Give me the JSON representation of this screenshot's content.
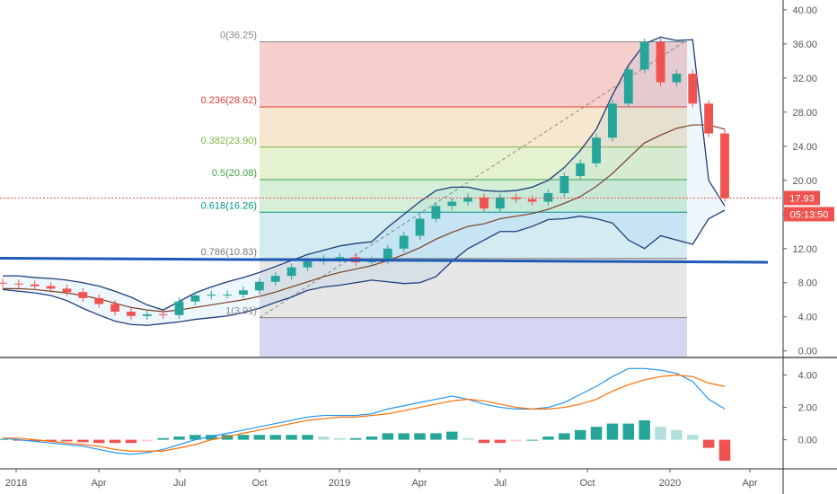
{
  "chart_data": [
    {
      "type": "candlestick",
      "panel": "price",
      "title": "",
      "ylim": [
        -0.5,
        41
      ],
      "y_ticks": [
        "40.00",
        "36.00",
        "32.00",
        "28.00",
        "24.00",
        "20.00",
        "16.00",
        "12.00",
        "8.00",
        "4.00",
        "0.00"
      ],
      "x_labels": [
        "2018",
        "Apr",
        "Jul",
        "Oct",
        "2019",
        "Apr",
        "Jul",
        "Oct",
        "2020",
        "Apr"
      ],
      "last_price": "17.93",
      "countdown": "05:13:50",
      "fibonacci": [
        {
          "label": "0(36.25)",
          "value": 36.25,
          "color": "#888888"
        },
        {
          "label": "0.236(28.62)",
          "value": 28.62,
          "color": "#e53935"
        },
        {
          "label": "0.382(23.90)",
          "value": 23.9,
          "color": "#81b441"
        },
        {
          "label": "0.5(20.08)",
          "value": 20.08,
          "color": "#43a047"
        },
        {
          "label": "0.618(16.26)",
          "value": 16.26,
          "color": "#009688"
        },
        {
          "label": "0.786(10.83)",
          "value": 10.83,
          "color": "#787878"
        },
        {
          "label": "1(3.91)",
          "value": 3.91,
          "color": "#888888"
        }
      ],
      "horizontal_line": 10.6,
      "series": [
        {
          "name": "close",
          "values": [
            7.9,
            7.8,
            7.6,
            7.3,
            6.9,
            6.2,
            5.5,
            4.6,
            4.1,
            4.3,
            4.2,
            5.8,
            6.5,
            6.6,
            6.6,
            7.1,
            8.1,
            8.8,
            9.8,
            10.5,
            10.8,
            11.0,
            10.4,
            10.6,
            12.0,
            13.5,
            15.5,
            17.0,
            17.5,
            18.0,
            16.7,
            18.0,
            17.8,
            17.5,
            18.5,
            20.5,
            22.0,
            25.0,
            29.0,
            33.0,
            36.2,
            31.5,
            32.5,
            29.0,
            25.5,
            17.93
          ]
        },
        {
          "name": "ema",
          "values": [
            7.3,
            7.3,
            7.2,
            7.0,
            6.8,
            6.5,
            6.1,
            5.6,
            5.1,
            4.8,
            4.6,
            4.8,
            5.1,
            5.4,
            5.7,
            6.0,
            6.4,
            6.9,
            7.5,
            8.1,
            8.7,
            9.2,
            9.6,
            10.0,
            10.6,
            11.3,
            12.1,
            13.1,
            13.9,
            14.6,
            14.9,
            15.5,
            15.8,
            16.1,
            16.6,
            17.3,
            18.1,
            19.3,
            20.8,
            22.6,
            24.4,
            25.3,
            26.1,
            26.5,
            26.5,
            26.0
          ]
        },
        {
          "name": "upper_band",
          "values": [
            8.8,
            8.8,
            8.6,
            8.5,
            8.3,
            8.0,
            7.6,
            7.0,
            6.3,
            5.4,
            4.8,
            5.8,
            6.8,
            7.5,
            8.1,
            8.6,
            9.2,
            9.9,
            10.6,
            11.3,
            11.8,
            12.3,
            12.6,
            12.8,
            14.5,
            16.0,
            17.5,
            18.8,
            19.2,
            19.2,
            18.8,
            18.7,
            18.8,
            19.2,
            20.0,
            21.5,
            23.5,
            26.0,
            30.0,
            33.5,
            36.0,
            36.8,
            36.4,
            36.5,
            20.0,
            17.0
          ]
        },
        {
          "name": "lower_band",
          "values": [
            7.2,
            7.0,
            6.8,
            6.5,
            5.9,
            5.0,
            4.2,
            3.5,
            3.1,
            3.0,
            3.2,
            3.4,
            3.7,
            3.9,
            4.1,
            4.5,
            5.0,
            5.7,
            6.3,
            7.1,
            7.5,
            7.7,
            8.0,
            8.3,
            8.1,
            7.9,
            8.0,
            8.7,
            10.5,
            12.0,
            13.0,
            14.0,
            14.0,
            14.6,
            15.4,
            15.5,
            15.8,
            15.5,
            15.0,
            13.0,
            12.0,
            13.5,
            13.0,
            12.5,
            15.5,
            16.5
          ]
        }
      ]
    },
    {
      "type": "bar+line",
      "panel": "macd",
      "ylim": [
        -2.9,
        5.0
      ],
      "y_ticks": [
        "4.00",
        "2.00",
        "0.00"
      ],
      "series": [
        {
          "name": "macd",
          "values": [
            0.1,
            0.0,
            -0.1,
            -0.2,
            -0.3,
            -0.4,
            -0.6,
            -0.8,
            -0.9,
            -0.8,
            -0.6,
            -0.3,
            0.0,
            0.2,
            0.4,
            0.6,
            0.8,
            1.0,
            1.2,
            1.4,
            1.5,
            1.5,
            1.5,
            1.6,
            1.9,
            2.1,
            2.3,
            2.5,
            2.7,
            2.5,
            2.2,
            2.0,
            1.9,
            1.9,
            2.0,
            2.3,
            2.8,
            3.3,
            3.9,
            4.4,
            4.4,
            4.3,
            4.1,
            3.6,
            2.5,
            1.9
          ]
        },
        {
          "name": "signal",
          "values": [
            0.1,
            0.1,
            0.0,
            -0.1,
            -0.2,
            -0.3,
            -0.4,
            -0.6,
            -0.7,
            -0.7,
            -0.7,
            -0.5,
            -0.3,
            0.0,
            0.2,
            0.4,
            0.6,
            0.8,
            1.0,
            1.2,
            1.3,
            1.4,
            1.4,
            1.5,
            1.6,
            1.8,
            2.0,
            2.2,
            2.4,
            2.5,
            2.4,
            2.2,
            2.0,
            1.9,
            1.9,
            2.0,
            2.2,
            2.5,
            3.0,
            3.4,
            3.7,
            3.9,
            4.0,
            3.9,
            3.5,
            3.3
          ]
        },
        {
          "name": "histogram",
          "values": [
            0.05,
            -0.05,
            -0.1,
            -0.1,
            -0.1,
            -0.15,
            -0.2,
            -0.2,
            -0.2,
            -0.1,
            0.1,
            0.2,
            0.3,
            0.3,
            0.3,
            0.3,
            0.3,
            0.3,
            0.3,
            0.3,
            0.2,
            0.1,
            0.1,
            0.2,
            0.4,
            0.4,
            0.4,
            0.4,
            0.5,
            0.1,
            -0.2,
            -0.2,
            -0.1,
            0.0,
            0.2,
            0.4,
            0.6,
            0.8,
            1.0,
            1.0,
            1.2,
            0.8,
            0.6,
            0.3,
            -0.5,
            -1.3
          ]
        }
      ]
    }
  ]
}
